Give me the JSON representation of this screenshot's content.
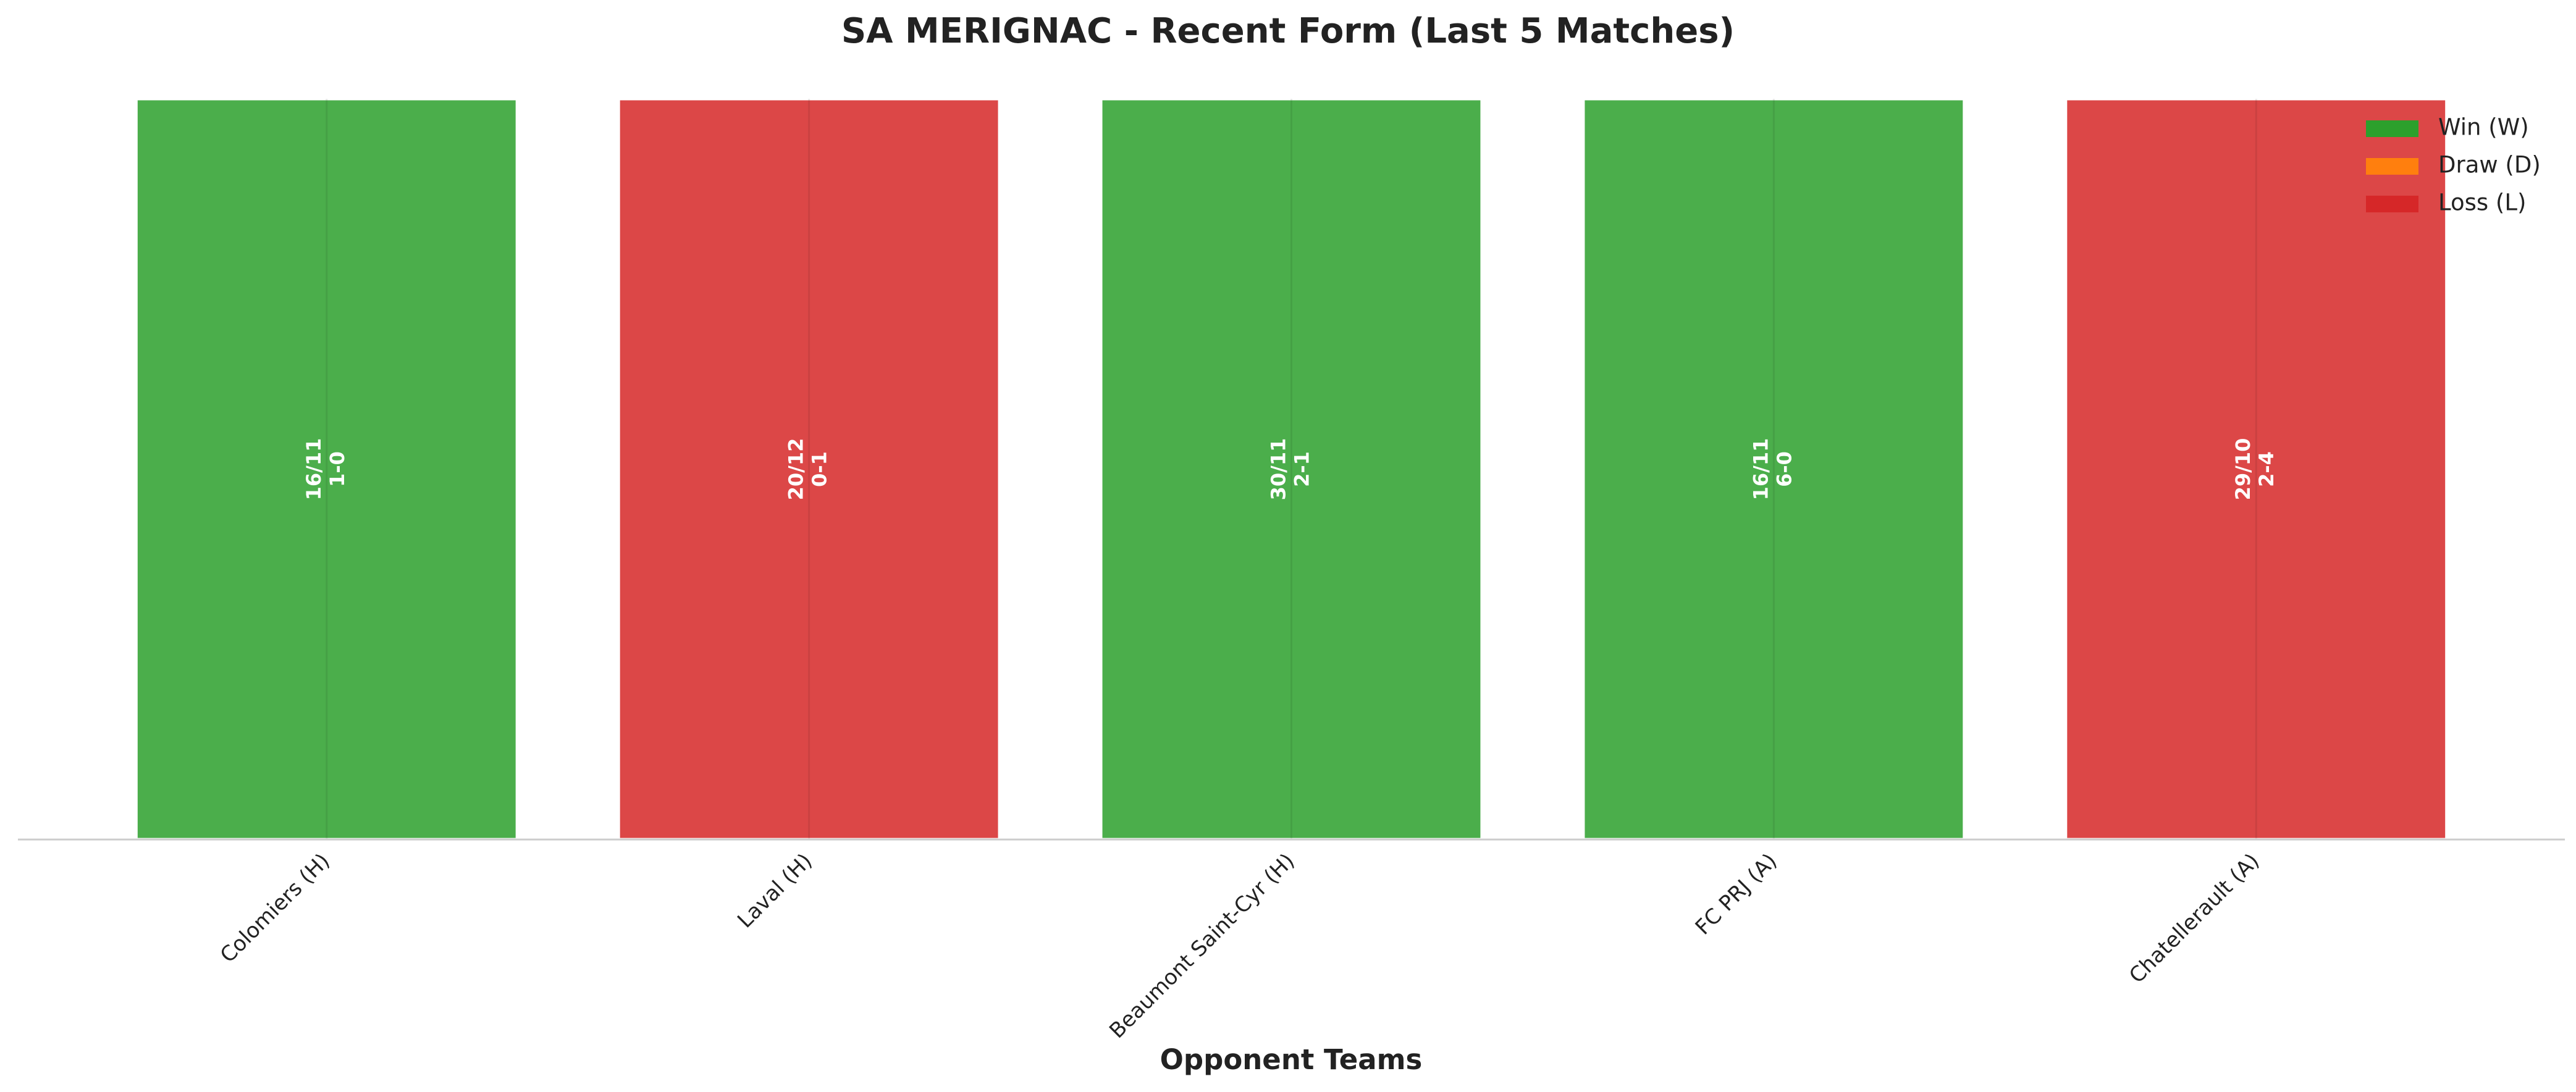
{
  "chart_data": {
    "type": "bar",
    "title": "SA MERIGNAC - Recent Form (Last 5 Matches)",
    "x_label": "Opponent Teams",
    "categories": [
      "Colomiers (H)",
      "Laval (H)",
      "Beaumont Saint-Cyr (H)",
      "FC PRJ (A)",
      "Chatellerault (A)"
    ],
    "values": [
      1,
      1,
      1,
      1,
      1
    ],
    "colors": [
      "#2ca02c",
      "#d62728",
      "#2ca02c",
      "#2ca02c",
      "#d62728"
    ],
    "dates": [
      "16/11",
      "20/12",
      "30/11",
      "16/11",
      "29/10"
    ],
    "scores": [
      "1-0",
      "0-1",
      "2-1",
      "6-0",
      "2-4"
    ],
    "legend": [
      {
        "name": "Win (W)",
        "color": "#2ca02c"
      },
      {
        "name": "Draw (D)",
        "color": "#ff7f0e"
      },
      {
        "name": "Loss (L)",
        "color": "#d62728"
      }
    ],
    "legend_position": "upper right"
  }
}
